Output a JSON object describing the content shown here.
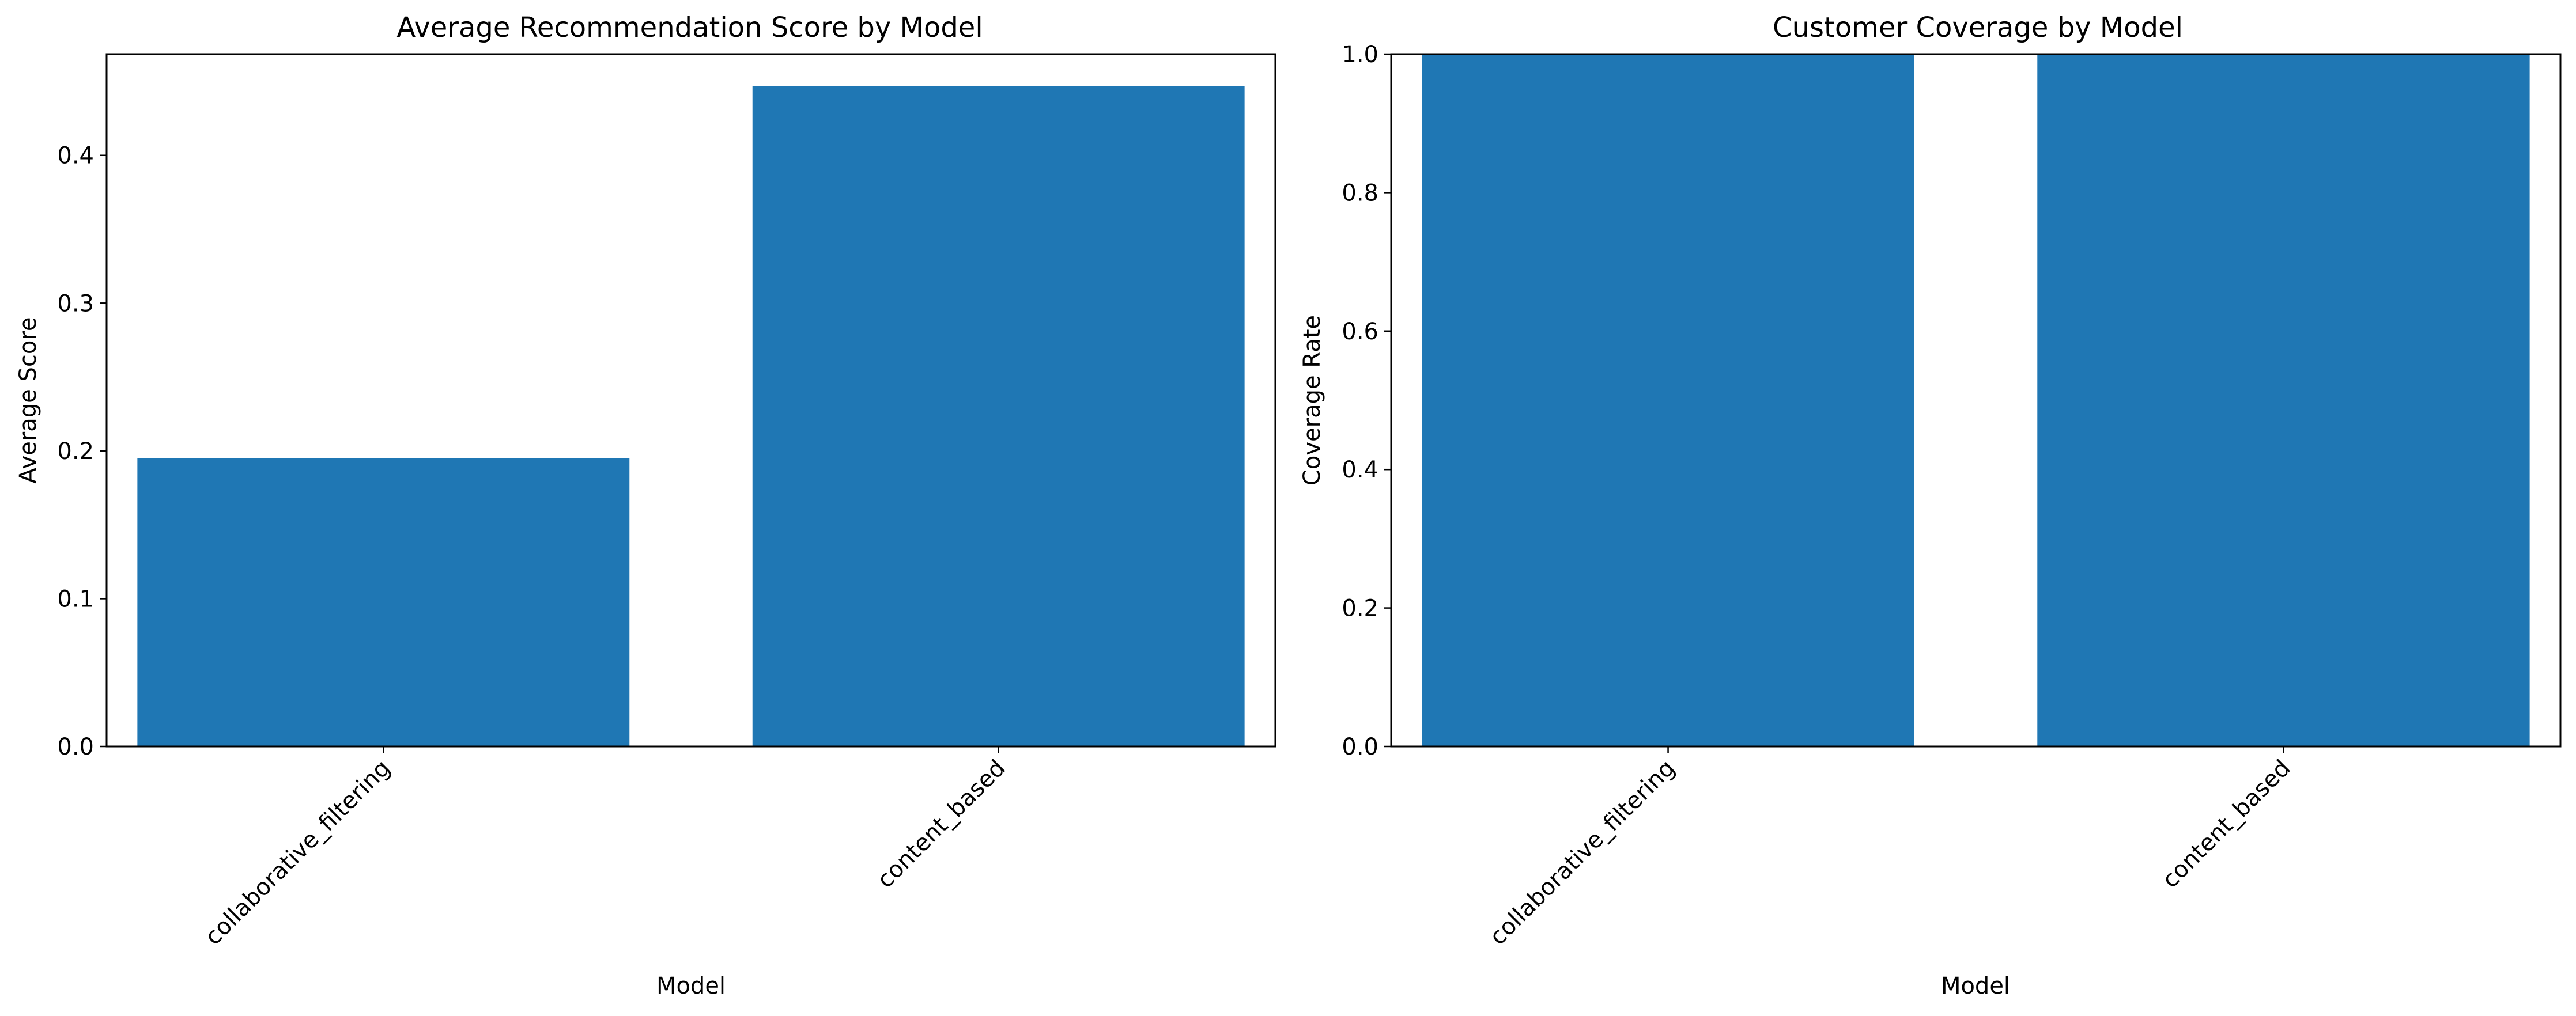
{
  "chart_data": [
    {
      "type": "bar",
      "title": "Average Recommendation Score by Model",
      "xlabel": "Model",
      "ylabel": "Average Score",
      "categories": [
        "collaborative_filtering",
        "content_based"
      ],
      "values": [
        0.195,
        0.447
      ],
      "ylim": [
        0,
        0.4685
      ],
      "yticks": [
        0.0,
        0.1,
        0.2,
        0.3,
        0.4
      ],
      "ytick_labels": [
        "0.0",
        "0.1",
        "0.2",
        "0.3",
        "0.4"
      ],
      "bar_color": "#1f77b4",
      "grid": false,
      "legend": "none"
    },
    {
      "type": "bar",
      "title": "Customer Coverage by Model",
      "xlabel": "Model",
      "ylabel": "Coverage Rate",
      "categories": [
        "collaborative_filtering",
        "content_based"
      ],
      "values": [
        1.0,
        1.0
      ],
      "ylim": [
        0,
        1.0
      ],
      "yticks": [
        0.0,
        0.2,
        0.4,
        0.6,
        0.8,
        1.0
      ],
      "ytick_labels": [
        "0.0",
        "0.2",
        "0.4",
        "0.6",
        "0.8",
        "1.0"
      ],
      "bar_color": "#1f77b4",
      "grid": false,
      "legend": "none"
    }
  ]
}
